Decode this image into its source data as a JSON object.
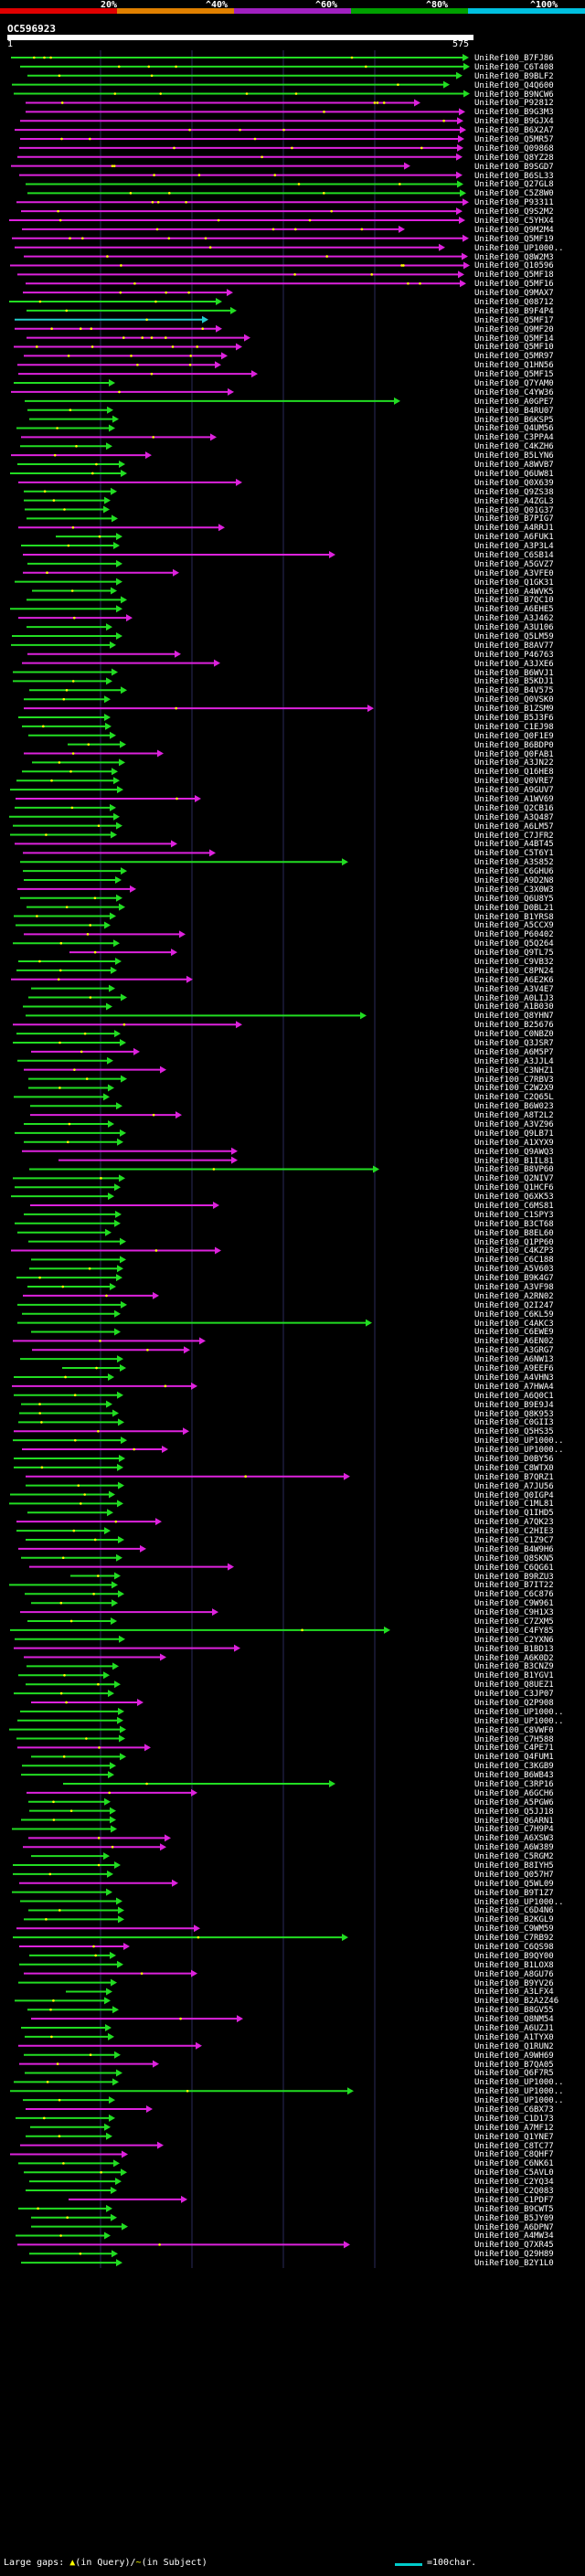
{
  "scale": {
    "labels": [
      "20%",
      "^40%",
      "^60%",
      "^80%",
      "^100%"
    ],
    "colors": [
      "#e00000",
      "#e08000",
      "#a020c0",
      "#00a000",
      "#00c0e0"
    ]
  },
  "query": {
    "id": "OC596923",
    "start": "1",
    "end": "575"
  },
  "colors": {
    "green": "#22dd22",
    "magenta": "#dd22dd",
    "cyan": "#22cccc",
    "gap": "#ffff00",
    "grid": "#2a2a5a"
  },
  "hits": [
    "UniRef100_B7FJ86",
    "UniRef100_C6T408",
    "UniRef100_B9BLF2",
    "UniRef100_Q4Q600",
    "UniRef100_B9NCW6",
    "UniRef100_P92812",
    "UniRef100_B9G3M3",
    "UniRef100_B9GJX4",
    "UniRef100_B6X2A7",
    "UniRef100_Q5MR57",
    "UniRef100_Q09868",
    "UniRef100_Q8YZ28",
    "UniRef100_B9SGD7",
    "UniRef100_B6SL33",
    "UniRef100_Q27GL8",
    "UniRef100_C5Z8W0",
    "UniRef100_P93311",
    "UniRef100_Q9S2M2",
    "UniRef100_C5YHX4",
    "UniRef100_Q9M2M4",
    "UniRef100_Q5MF19",
    "UniRef100_UP1000..",
    "UniRef100_Q8W2M3",
    "UniRef100_Q10596",
    "UniRef100_Q5MF18",
    "UniRef100_Q5MF16",
    "UniRef100_Q9MAX7",
    "UniRef100_Q08712",
    "UniRef100_B9F4P4",
    "UniRef100_Q5MF17",
    "UniRef100_Q9MF20",
    "UniRef100_Q5MF14",
    "UniRef100_Q5MF10",
    "UniRef100_Q5MR97",
    "UniRef100_Q1HN56",
    "UniRef100_Q5MF15",
    "UniRef100_Q7YAM0",
    "UniRef100_C4YW36",
    "UniRef100_A0GPE7",
    "UniRef100_B4RU07",
    "UniRef100_B6KSP5",
    "UniRef100_Q4UM56",
    "UniRef100_C3PPA4",
    "UniRef100_C4KZH6",
    "UniRef100_B5LYN6",
    "UniRef100_A8WVB7",
    "UniRef100_Q6UW81",
    "UniRef100_Q0X639",
    "UniRef100_Q9ZS38",
    "UniRef100_A4ZGL3",
    "UniRef100_Q01G37",
    "UniRef100_B7PIG7",
    "UniRef100_A4RRJ1",
    "UniRef100_A6FUK1",
    "UniRef100_A3P3L4",
    "UniRef100_C6SB14",
    "UniRef100_A5GVZ7",
    "UniRef100_A3VFE0",
    "UniRef100_Q1GK31",
    "UniRef100_A4WVK5",
    "UniRef100_B7QC10",
    "UniRef100_A6EHE5",
    "UniRef100_A3J462",
    "UniRef100_A3U106",
    "UniRef100_Q5LM59",
    "UniRef100_B8AV77",
    "UniRef100_P46763",
    "UniRef100_A3JXE6",
    "UniRef100_B6WVJ1",
    "UniRef100_B5KDJ1",
    "UniRef100_B4V575",
    "UniRef100_Q0VSK0",
    "UniRef100_B1ZSM9",
    "UniRef100_B5J3F6",
    "UniRef100_C1EJ98",
    "UniRef100_Q0F1E9",
    "UniRef100_B6BDP0",
    "UniRef100_Q0FAB1",
    "UniRef100_A3JN22",
    "UniRef100_Q16HE8",
    "UniRef100_Q0VRE7",
    "UniRef100_A9GUV7",
    "UniRef100_A1WV69",
    "UniRef100_Q2CB16",
    "UniRef100_A3Q487",
    "UniRef100_A6LM57",
    "UniRef100_C7JFR2",
    "UniRef100_A4BT45",
    "UniRef100_C5T6Y1",
    "UniRef100_A3S852",
    "UniRef100_C6GHU6",
    "UniRef100_A9D2N8",
    "UniRef100_C3X0W3",
    "UniRef100_Q6U8Y5",
    "UniRef100_D0BL21",
    "UniRef100_B1YRS8",
    "UniRef100_A5CCX9",
    "UniRef100_P60402",
    "UniRef100_Q5Q264",
    "UniRef100_Q9TL75",
    "UniRef100_C9VB32",
    "UniRef100_C8PN24",
    "UniRef100_A6E2K6",
    "UniRef100_A3V4E7",
    "UniRef100_A0LIJ3",
    "UniRef100_A1B030",
    "UniRef100_Q8YHN7",
    "UniRef100_B25676",
    "UniRef100_C0NBZ0",
    "UniRef100_Q3JSR7",
    "UniRef100_A6M5P7",
    "UniRef100_A3JJL4",
    "UniRef100_C3NHZ1",
    "UniRef100_C7RBV3",
    "UniRef100_C2W2X9",
    "UniRef100_C2Q65L",
    "UniRef100_B6W023",
    "UniRef100_A8T2L2",
    "UniRef100_A3VZ96",
    "UniRef100_Q9LB71",
    "UniRef100_A1XYX9",
    "UniRef100_Q9AWQ3",
    "UniRef100_B1IL81",
    "UniRef100_B8VP60",
    "UniRef100_Q2NIV7",
    "UniRef100_Q1HCF6",
    "UniRef100_Q6XK53",
    "UniRef100_C6MS81",
    "UniRef100_C1SPY3",
    "UniRef100_B3CT68",
    "UniRef100_B8EL60",
    "UniRef100_Q1PP60",
    "UniRef100_C4KZP3",
    "UniRef100_C6C188",
    "UniRef100_A5V603",
    "UniRef100_B9K4G7",
    "UniRef100_A3VF98",
    "UniRef100_A2RN02",
    "UniRef100_Q2I247",
    "UniRef100_C6KL59",
    "UniRef100_C4AKC3",
    "UniRef100_C6EWE9",
    "UniRef100_A6EN02",
    "UniRef100_A3GRG7",
    "UniRef100_A6NW13",
    "UniRef100_A9EEF6",
    "UniRef100_A4VHN3",
    "UniRef100_A7HWA4",
    "UniRef100_A6Q0C1",
    "UniRef100_B9E9J4",
    "UniRef100_Q8K953",
    "UniRef100_C0GII3",
    "UniRef100_Q5HS35",
    "UniRef100_UP1000..",
    "UniRef100_UP1000..",
    "UniRef100_D0BY56",
    "UniRef100_C8WTX0",
    "UniRef100_B7QRZ1",
    "UniRef100_A7JU56",
    "UniRef100_Q0IGP4",
    "UniRef100_C1ML81",
    "UniRef100_Q1IHD5",
    "UniRef100_A7QK23",
    "UniRef100_C2HIE3",
    "UniRef100_C1Z9C7",
    "UniRef100_B4W9H6",
    "UniRef100_Q8SKN5",
    "UniRef100_C6QG61",
    "UniRef100_B9RZU3",
    "UniRef100_B7IT22",
    "UniRef100_C6C876",
    "UniRef100_C9W961",
    "UniRef100_C9H1X3",
    "UniRef100_C7ZXM5",
    "UniRef100_C4FY85",
    "UniRef100_C2YXN6",
    "UniRef100_B1BD13",
    "UniRef100_A6K0D2",
    "UniRef100_B3CNZ9",
    "UniRef100_B1YGV1",
    "UniRef100_Q8UEZ1",
    "UniRef100_C3JP07",
    "UniRef100_Q2P908",
    "UniRef100_UP1000..",
    "UniRef100_UP1000..",
    "UniRef100_C8VWF0",
    "UniRef100_C7H588",
    "UniRef100_C4PE71",
    "UniRef100_Q4FUM1",
    "UniRef100_C3KGB9",
    "UniRef100_B6WB43",
    "UniRef100_C3RP16",
    "UniRef100_A6GCH6",
    "UniRef100_A5PGW6",
    "UniRef100_Q5JJ18",
    "UniRef100_Q6ARN1",
    "UniRef100_C7H9P4",
    "UniRef100_A6XSW3",
    "UniRef100_A6W389",
    "UniRef100_C5RGM2",
    "UniRef100_B8IYH5",
    "UniRef100_Q057H7",
    "UniRef100_Q5WL09",
    "UniRef100_B9T1Z7",
    "UniRef100_UP1000..",
    "UniRef100_C6D4N6",
    "UniRef100_B2KGL9",
    "UniRef100_C9WM59",
    "UniRef100_C7RB92",
    "UniRef100_C6QS98",
    "UniRef100_B9QY00",
    "UniRef100_B1LOX8",
    "UniRef100_A8GU76",
    "UniRef100_B9YV26",
    "UniRef100_A3LFX4",
    "UniRef100_B2A2Z46",
    "UniRef100_B8GV55",
    "UniRef100_Q8NM54",
    "UniRef100_A6UZJ1",
    "UniRef100_A1TYX0",
    "UniRef100_Q1RUN2",
    "UniRef100_A9WH69",
    "UniRef100_B7QA05",
    "UniRef100_Q6F7R5",
    "UniRef100_UP1000..",
    "UniRef100_UP1000..",
    "UniRef100_UP1000..",
    "UniRef100_C6BX73",
    "UniRef100_C1D173",
    "UniRef100_A7MF12",
    "UniRef100_Q1YNE7",
    "UniRef100_C8TC77",
    "UniRef100_C8QHF7",
    "UniRef100_C6NK61",
    "UniRef100_C5AVL0",
    "UniRef100_C2YQ34",
    "UniRef100_C2Q083",
    "UniRef100_C1PDF7",
    "UniRef100_B9CWT5",
    "UniRef100_B5JY09",
    "UniRef100_A6DPN7",
    "UniRef100_A4MW34",
    "UniRef100_Q7XR45",
    "UniRef100_Q29H89",
    "UniRef100_B2Y1L0"
  ],
  "footer": {
    "gaps_label": "Large gaps:",
    "gaps_query_marker": "▲",
    "gaps_query_label": "(in Query)/",
    "gaps_subject_marker": "~",
    "gaps_subject_label": "(in Subject)",
    "scale_label": "=100char."
  }
}
